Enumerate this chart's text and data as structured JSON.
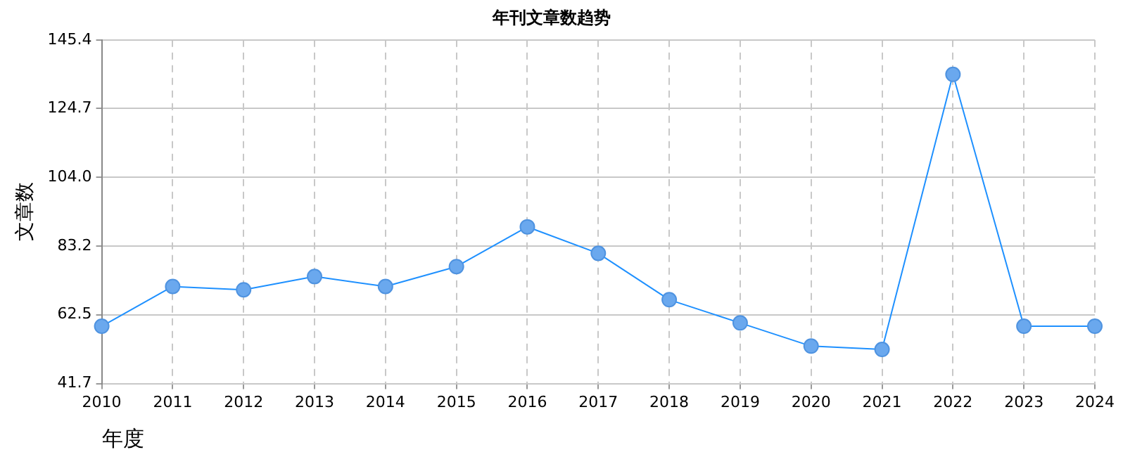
{
  "chart_data": {
    "type": "line",
    "title": "年刊文章数趋势",
    "xlabel": "年度",
    "ylabel": "文章数",
    "categories": [
      "2010",
      "2011",
      "2012",
      "2013",
      "2014",
      "2015",
      "2016",
      "2017",
      "2018",
      "2019",
      "2020",
      "2021",
      "2022",
      "2023",
      "2024"
    ],
    "series": [
      {
        "color": "#1e90ff",
        "values": [
          59,
          71,
          70,
          74,
          71,
          77,
          89,
          81,
          67,
          60,
          53,
          52,
          135,
          59,
          59
        ]
      }
    ],
    "ylim": [
      41.7,
      145.4
    ],
    "yticks": [
      41.7,
      62.5,
      83.2,
      {
        "value": 104,
        "label": "104.0"
      },
      124.7,
      145.4
    ],
    "grid": true,
    "legend": false,
    "marker": "circle",
    "line_style": "solid"
  }
}
